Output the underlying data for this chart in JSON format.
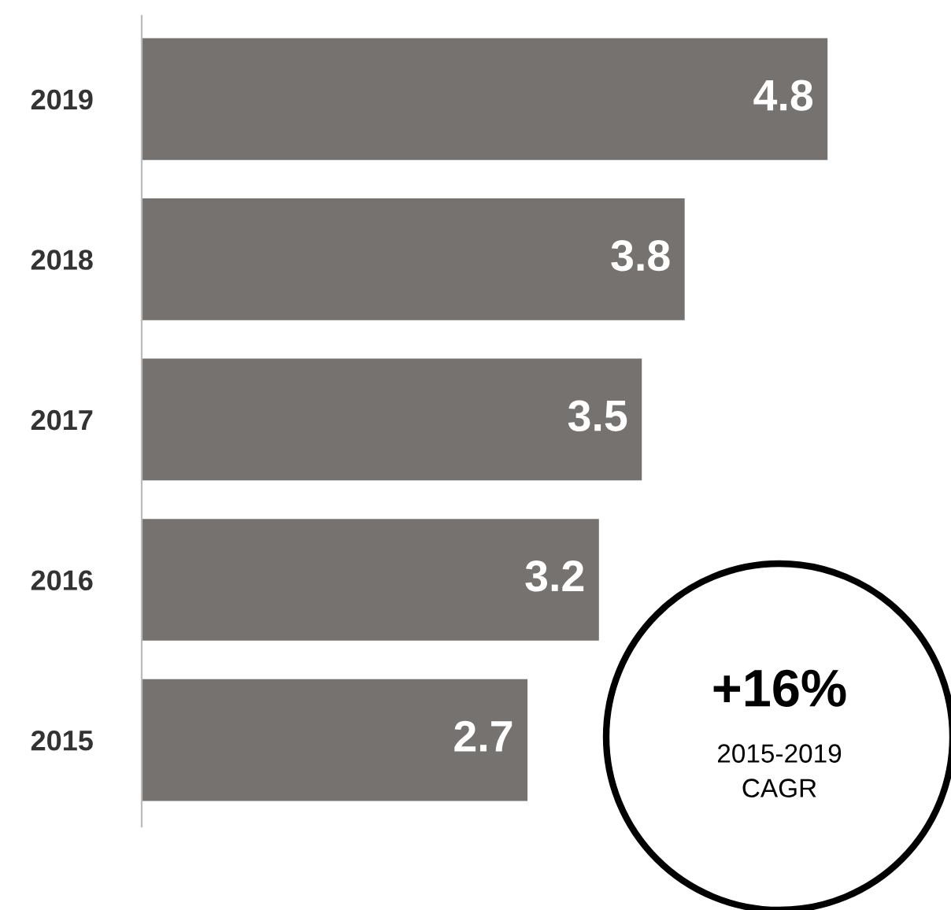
{
  "chart_data": {
    "type": "bar",
    "orientation": "horizontal",
    "categories": [
      "2019",
      "2018",
      "2017",
      "2016",
      "2015"
    ],
    "values": [
      4.8,
      3.8,
      3.5,
      3.2,
      2.7
    ],
    "color": "#767270",
    "data_labels": true,
    "grid": false,
    "legend": false,
    "tick_labels": "y",
    "annotations": [
      "+16%",
      "2015-2019",
      "CAGR"
    ]
  }
}
